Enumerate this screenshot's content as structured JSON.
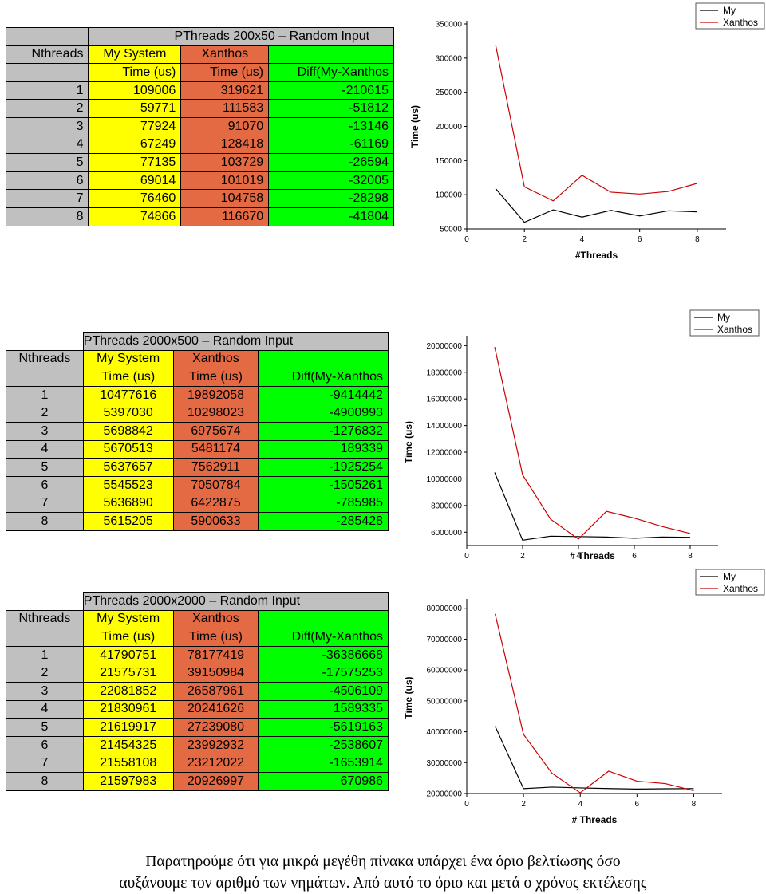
{
  "tables": [
    {
      "title": "PThreads 200x50 – Random Input",
      "col_nthreads": "Nthreads",
      "col_my": "My System",
      "col_xanthos": "Xanthos",
      "sub_my": "Time (us)",
      "sub_xanthos": "Time (us)",
      "sub_diff": "Diff(My-Xanthos",
      "rows": [
        {
          "n": "1",
          "my": "109006",
          "x": "319621",
          "d": "-210615"
        },
        {
          "n": "2",
          "my": "59771",
          "x": "111583",
          "d": "-51812"
        },
        {
          "n": "3",
          "my": "77924",
          "x": "91070",
          "d": "-13146"
        },
        {
          "n": "4",
          "my": "67249",
          "x": "128418",
          "d": "-61169"
        },
        {
          "n": "5",
          "my": "77135",
          "x": "103729",
          "d": "-26594"
        },
        {
          "n": "6",
          "my": "69014",
          "x": "101019",
          "d": "-32005"
        },
        {
          "n": "7",
          "my": "76460",
          "x": "104758",
          "d": "-28298"
        },
        {
          "n": "8",
          "my": "74866",
          "x": "116670",
          "d": "-41804"
        }
      ]
    },
    {
      "title": "PThreads 2000x500 – Random Input",
      "col_nthreads": "Nthreads",
      "col_my": "My System",
      "col_xanthos": "Xanthos",
      "sub_my": "Time (us)",
      "sub_xanthos": "Time (us)",
      "sub_diff": "Diff(My-Xanthos",
      "rows": [
        {
          "n": "1",
          "my": "10477616",
          "x": "19892058",
          "d": "-9414442"
        },
        {
          "n": "2",
          "my": "5397030",
          "x": "10298023",
          "d": "-4900993"
        },
        {
          "n": "3",
          "my": "5698842",
          "x": "6975674",
          "d": "-1276832"
        },
        {
          "n": "4",
          "my": "5670513",
          "x": "5481174",
          "d": "189339"
        },
        {
          "n": "5",
          "my": "5637657",
          "x": "7562911",
          "d": "-1925254"
        },
        {
          "n": "6",
          "my": "5545523",
          "x": "7050784",
          "d": "-1505261"
        },
        {
          "n": "7",
          "my": "5636890",
          "x": "6422875",
          "d": "-785985"
        },
        {
          "n": "8",
          "my": "5615205",
          "x": "5900633",
          "d": "-285428"
        }
      ]
    },
    {
      "title": "PThreads 2000x2000 – Random Input",
      "col_nthreads": "Nthreads",
      "col_my": "My System",
      "col_xanthos": "Xanthos",
      "sub_my": "Time (us)",
      "sub_xanthos": "Time (us)",
      "sub_diff": "Diff(My-Xanthos",
      "rows": [
        {
          "n": "1",
          "my": "41790751",
          "x": "78177419",
          "d": "-36386668"
        },
        {
          "n": "2",
          "my": "21575731",
          "x": "39150984",
          "d": "-17575253"
        },
        {
          "n": "3",
          "my": "22081852",
          "x": "26587961",
          "d": "-4506109"
        },
        {
          "n": "4",
          "my": "21830961",
          "x": "20241626",
          "d": "1589335"
        },
        {
          "n": "5",
          "my": "21619917",
          "x": "27239080",
          "d": "-5619163"
        },
        {
          "n": "6",
          "my": "21454325",
          "x": "23992932",
          "d": "-2538607"
        },
        {
          "n": "7",
          "my": "21558108",
          "x": "23212022",
          "d": "-1653914"
        },
        {
          "n": "8",
          "my": "21597983",
          "x": "20926997",
          "d": "670986"
        }
      ]
    }
  ],
  "chart_data": [
    {
      "type": "line",
      "title": "",
      "xlabel": "#Threads",
      "ylabel": "Time (us)",
      "xlim": [
        0,
        9
      ],
      "ylim": [
        50000,
        350000
      ],
      "xticks": [
        "0",
        "2",
        "4",
        "6",
        "8"
      ],
      "xtick_values": [
        0,
        2,
        4,
        6,
        8
      ],
      "yticks": [
        "50000",
        "100000",
        "150000",
        "200000",
        "250000",
        "300000",
        "350000"
      ],
      "ytick_values": [
        50000,
        100000,
        150000,
        200000,
        250000,
        300000,
        350000
      ],
      "x": [
        1,
        2,
        3,
        4,
        5,
        6,
        7,
        8
      ],
      "series": [
        {
          "name": "My",
          "color": "#000000",
          "values": [
            109006,
            59771,
            77924,
            67249,
            77135,
            69014,
            76460,
            74866
          ]
        },
        {
          "name": "Xanthos",
          "color": "#cc0000",
          "values": [
            319621,
            111583,
            91070,
            128418,
            103729,
            101019,
            104758,
            116670
          ]
        }
      ]
    },
    {
      "type": "line",
      "title": "",
      "xlabel": "# Threads",
      "ylabel": "Time (us)",
      "xlim": [
        0,
        9
      ],
      "ylim": [
        5000000,
        20500000
      ],
      "xticks": [
        "0",
        "2",
        "4",
        "6",
        "8"
      ],
      "xtick_values": [
        0,
        2,
        4,
        6,
        8
      ],
      "yticks": [
        "6000000",
        "8000000",
        "10000000",
        "12000000",
        "14000000",
        "16000000",
        "18000000",
        "20000000"
      ],
      "ytick_values": [
        6000000,
        8000000,
        10000000,
        12000000,
        14000000,
        16000000,
        18000000,
        20000000
      ],
      "x": [
        1,
        2,
        3,
        4,
        5,
        6,
        7,
        8
      ],
      "series": [
        {
          "name": "My",
          "color": "#000000",
          "values": [
            10477616,
            5397030,
            5698842,
            5670513,
            5637657,
            5545523,
            5636890,
            5615205
          ]
        },
        {
          "name": "Xanthos",
          "color": "#cc0000",
          "values": [
            19892058,
            10298023,
            6975674,
            5481174,
            7562911,
            7050784,
            6422875,
            5900633
          ]
        }
      ]
    },
    {
      "type": "line",
      "title": "",
      "xlabel": "# Threads",
      "ylabel": "Time (us)",
      "xlim": [
        0,
        9
      ],
      "ylim": [
        20000000,
        82000000
      ],
      "xticks": [
        "0",
        "2",
        "4",
        "6",
        "8"
      ],
      "xtick_values": [
        0,
        2,
        4,
        6,
        8
      ],
      "yticks": [
        "20000000",
        "30000000",
        "40000000",
        "50000000",
        "60000000",
        "70000000",
        "80000000"
      ],
      "ytick_values": [
        20000000,
        30000000,
        40000000,
        50000000,
        60000000,
        70000000,
        80000000
      ],
      "x": [
        1,
        2,
        3,
        4,
        5,
        6,
        7,
        8
      ],
      "series": [
        {
          "name": "My",
          "color": "#000000",
          "values": [
            41790751,
            21575731,
            22081852,
            21830961,
            21619917,
            21454325,
            21558108,
            21597983
          ]
        },
        {
          "name": "Xanthos",
          "color": "#cc0000",
          "values": [
            78177419,
            39150984,
            26587961,
            20241626,
            27239080,
            23992932,
            23212022,
            20926997
          ]
        }
      ]
    }
  ],
  "paragraph": {
    "line1": "Παρατηρούμε ότι για μικρά μεγέθη πίνακα υπάρχει ένα όριο βελτίωσης όσο",
    "line2": "αυξάνουμε τον αριθμό των νημάτων. Από αυτό το όριο και μετά ο χρόνος εκτέλεσης"
  }
}
